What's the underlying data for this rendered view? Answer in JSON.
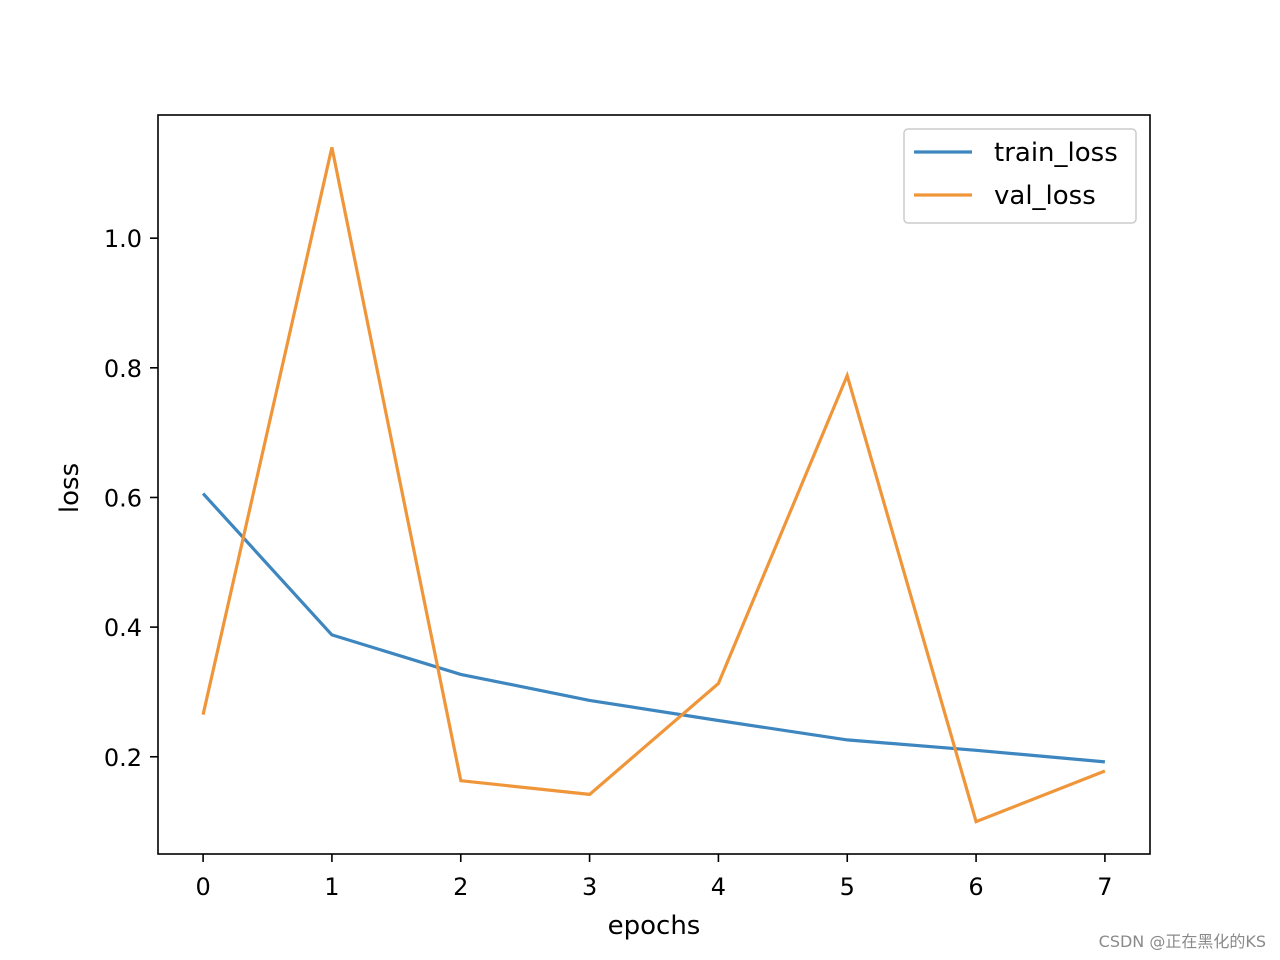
{
  "chart_data": {
    "type": "line",
    "x": [
      0,
      1,
      2,
      3,
      4,
      5,
      6,
      7
    ],
    "series": [
      {
        "name": "train_loss",
        "color": "#3d86bf",
        "values": [
          0.606,
          0.388,
          0.327,
          0.287,
          0.256,
          0.226,
          0.21,
          0.192
        ]
      },
      {
        "name": "val_loss",
        "color": "#f0963a",
        "values": [
          0.265,
          1.14,
          0.163,
          0.142,
          0.313,
          0.788,
          0.1,
          0.178
        ]
      }
    ],
    "xlabel": "epochs",
    "ylabel": "loss",
    "xlim": [
      -0.35,
      7.35
    ],
    "ylim": [
      0.05,
      1.19
    ],
    "xticks": [
      0,
      1,
      2,
      3,
      4,
      5,
      6,
      7
    ],
    "yticks": [
      0.2,
      0.4,
      0.6,
      0.8,
      1.0
    ],
    "ytick_labels": [
      "0.2",
      "0.4",
      "0.6",
      "0.8",
      "1.0"
    ],
    "grid": false,
    "legend": "top-right"
  },
  "watermark": "CSDN @正在黑化的KS"
}
